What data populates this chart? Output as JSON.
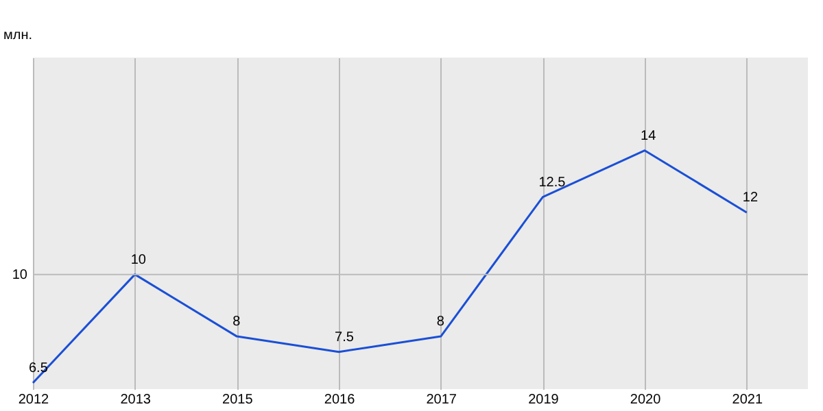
{
  "chart_data": {
    "type": "line",
    "ylabel": "млн.",
    "categories": [
      "2012",
      "2013",
      "2015",
      "2016",
      "2017",
      "2019",
      "2020",
      "2021"
    ],
    "series": [
      {
        "color": "#1a4fd6",
        "values": [
          6.5,
          10,
          8,
          7.5,
          8,
          12.5,
          14,
          12
        ]
      }
    ],
    "ylim": [
      6.3,
      17
    ],
    "ref_lines": [
      {
        "axis": "y",
        "value": 10,
        "label": "10"
      }
    ],
    "grid": "x",
    "data_labels": true,
    "marker": "none",
    "line_style": "solid",
    "legend": false
  }
}
